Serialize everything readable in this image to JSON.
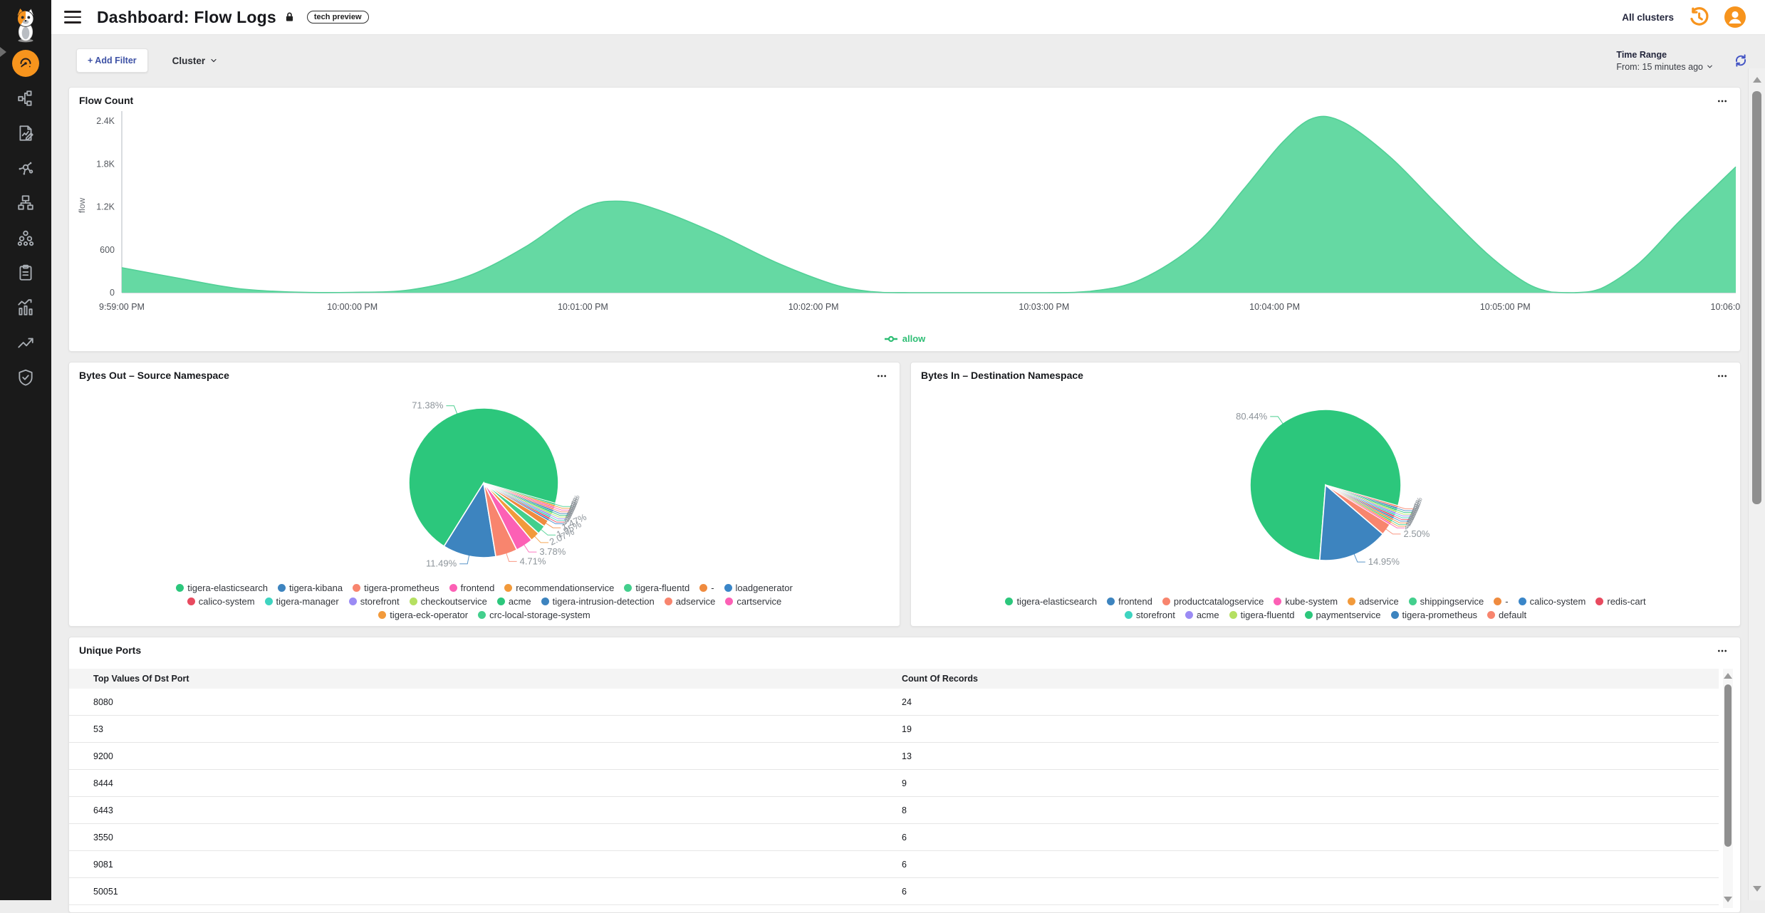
{
  "header": {
    "title": "Dashboard: Flow Logs",
    "badge": "tech preview",
    "clusters_selector": "All clusters"
  },
  "filter_bar": {
    "add_filter_label": "+ Add Filter",
    "cluster_dropdown_label": "Cluster",
    "time_range_label": "Time Range",
    "time_range_value": "From: 15 minutes ago"
  },
  "sidebar": {
    "icons": [
      "calico-cat-logo",
      "dashboards",
      "service-graph",
      "logs",
      "flow-visualizations",
      "network-sets",
      "clusters",
      "policies",
      "statistics",
      "trends",
      "compliance"
    ]
  },
  "chart_data": [
    {
      "id": "flow_count",
      "type": "area",
      "title": "Flow Count",
      "xlabel": "",
      "ylabel": "flow",
      "ylim": [
        0,
        2440
      ],
      "x_range_seconds": [
        0,
        420
      ],
      "y_ticks": [
        [
          "0",
          0
        ],
        [
          "600",
          600
        ],
        [
          "1.2K",
          1200
        ],
        [
          "1.8K",
          1800
        ],
        [
          "2.4K",
          2400
        ]
      ],
      "x_ticks": [
        "9:59:00 PM",
        "10:00:00 PM",
        "10:01:00 PM",
        "10:02:00 PM",
        "10:03:00 PM",
        "10:04:00 PM",
        "10:05:00 PM",
        "10:06:00 PM"
      ],
      "grid": false,
      "legend_position": "bottom",
      "series": [
        {
          "name": "allow",
          "color": "#65d9a3",
          "line_color": "#52d097",
          "points": [
            [
              0,
              350
            ],
            [
              15,
              200
            ],
            [
              30,
              60
            ],
            [
              45,
              8
            ],
            [
              60,
              5
            ],
            [
              75,
              40
            ],
            [
              90,
              230
            ],
            [
              105,
              640
            ],
            [
              120,
              1180
            ],
            [
              130,
              1280
            ],
            [
              140,
              1150
            ],
            [
              155,
              820
            ],
            [
              170,
              430
            ],
            [
              185,
              120
            ],
            [
              195,
              15
            ],
            [
              205,
              0
            ],
            [
              240,
              0
            ],
            [
              252,
              20
            ],
            [
              265,
              180
            ],
            [
              280,
              700
            ],
            [
              292,
              1450
            ],
            [
              302,
              2100
            ],
            [
              310,
              2440
            ],
            [
              318,
              2380
            ],
            [
              330,
              1900
            ],
            [
              342,
              1250
            ],
            [
              355,
              560
            ],
            [
              365,
              150
            ],
            [
              372,
              10
            ],
            [
              378,
              0
            ],
            [
              385,
              60
            ],
            [
              395,
              420
            ],
            [
              405,
              980
            ],
            [
              415,
              1500
            ],
            [
              420,
              1760
            ]
          ]
        }
      ]
    },
    {
      "id": "bytes_out_source_namespace",
      "type": "pie",
      "title": "Bytes Out – Source Namespace",
      "legend_rows": [
        8,
        8,
        2
      ],
      "slices": [
        {
          "label": "tigera-elasticsearch",
          "value": 71.38,
          "display": "71.38%",
          "color": "#2cc77c"
        },
        {
          "label": "tigera-kibana",
          "value": 11.49,
          "display": "11.49%",
          "color": "#3d84bf"
        },
        {
          "label": "tigera-prometheus",
          "value": 4.71,
          "display": "4.71%",
          "color": "#f8856e"
        },
        {
          "label": "frontend",
          "value": 3.78,
          "display": "3.78%",
          "color": "#fc60b5"
        },
        {
          "label": "recommendationservice",
          "value": 2.07,
          "display": "2.07%",
          "color": "#f29a3b"
        },
        {
          "label": "tigera-fluentd",
          "value": 1.95,
          "display": "1.95%",
          "color": "#43cf8d"
        },
        {
          "label": "-",
          "value": 1.47,
          "display": "1.47%",
          "color": "#ef8b3f"
        },
        {
          "label": "loadgenerator",
          "value": 0.286,
          "display": "<1%",
          "color": "#3a86c8"
        },
        {
          "label": "calico-system",
          "value": 0.286,
          "display": "<1%",
          "color": "#e84a5f"
        },
        {
          "label": "tigera-manager",
          "value": 0.286,
          "display": "<1%",
          "color": "#3ed4c0"
        },
        {
          "label": "storefront",
          "value": 0.286,
          "display": "<1%",
          "color": "#9b8bf4"
        },
        {
          "label": "checkoutservice",
          "value": 0.286,
          "display": "<1%",
          "color": "#b5e061"
        },
        {
          "label": "acme",
          "value": 0.286,
          "display": "<1%",
          "color": "#2cc77c"
        },
        {
          "label": "tigera-intrusion-detection",
          "value": 0.286,
          "display": "<1%",
          "color": "#3d84bf"
        },
        {
          "label": "adservice",
          "value": 0.286,
          "display": "<1%",
          "color": "#f8856e"
        },
        {
          "label": "cartservice",
          "value": 0.286,
          "display": "<1%",
          "color": "#fc60b5"
        },
        {
          "label": "tigera-eck-operator",
          "value": 0.286,
          "display": "<1%",
          "color": "#f29a3b"
        },
        {
          "label": "crc-local-storage-system",
          "value": 0.286,
          "display": "<1%",
          "color": "#43cf8d"
        }
      ]
    },
    {
      "id": "bytes_in_destination_namespace",
      "type": "pie",
      "title": "Bytes In – Destination Namespace",
      "legend_rows": [
        9,
        6
      ],
      "slices": [
        {
          "label": "tigera-elasticsearch",
          "value": 80.44,
          "display": "80.44%",
          "color": "#2cc77c"
        },
        {
          "label": "frontend",
          "value": 14.95,
          "display": "14.95%",
          "color": "#3d84bf"
        },
        {
          "label": "productcatalogservice",
          "value": 2.5,
          "display": "2.50%",
          "color": "#f8856e"
        },
        {
          "label": "kube-system",
          "value": 0.176,
          "display": "<1%",
          "color": "#fc60b5"
        },
        {
          "label": "adservice",
          "value": 0.176,
          "display": "<1%",
          "color": "#f29a3b"
        },
        {
          "label": "shippingservice",
          "value": 0.176,
          "display": "<1%",
          "color": "#43cf8d"
        },
        {
          "label": "-",
          "value": 0.176,
          "display": "<1%",
          "color": "#ef8b3f"
        },
        {
          "label": "calico-system",
          "value": 0.176,
          "display": "<1%",
          "color": "#3a86c8"
        },
        {
          "label": "redis-cart",
          "value": 0.176,
          "display": "<1%",
          "color": "#e84a5f"
        },
        {
          "label": "storefront",
          "value": 0.176,
          "display": "<1%",
          "color": "#3ed4c0"
        },
        {
          "label": "acme",
          "value": 0.176,
          "display": "<1%",
          "color": "#9b8bf4"
        },
        {
          "label": "tigera-fluentd",
          "value": 0.176,
          "display": "<1%",
          "color": "#b5e061"
        },
        {
          "label": "paymentservice",
          "value": 0.176,
          "display": "<1%",
          "color": "#2cc77c"
        },
        {
          "label": "tigera-prometheus",
          "value": 0.176,
          "display": "<1%",
          "color": "#3d84bf"
        },
        {
          "label": "default",
          "value": 0.176,
          "display": "<1%",
          "color": "#f8856e"
        }
      ]
    },
    {
      "id": "unique_ports",
      "type": "table",
      "title": "Unique Ports",
      "columns": [
        "Top Values Of Dst Port",
        "Count Of Records"
      ],
      "rows": [
        [
          "8080",
          "24"
        ],
        [
          "53",
          "19"
        ],
        [
          "9200",
          "13"
        ],
        [
          "8444",
          "9"
        ],
        [
          "6443",
          "8"
        ],
        [
          "3550",
          "6"
        ],
        [
          "9081",
          "6"
        ],
        [
          "50051",
          "6"
        ]
      ]
    }
  ]
}
